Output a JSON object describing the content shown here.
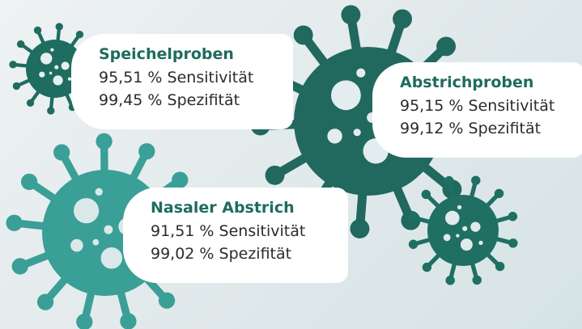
{
  "cards": [
    {
      "title": "Speichelproben",
      "lines": [
        "95,51 % Sensitivität",
        "99,45 % Spezifität"
      ]
    },
    {
      "title": "Abstrichproben",
      "lines": [
        "95,15 % Sensitivität",
        "99,12 % Spezifität"
      ]
    },
    {
      "title": "Nasaler Abstrich",
      "lines": [
        "91,51 % Sensitivität",
        "99,02 % Spezifität"
      ]
    }
  ]
}
